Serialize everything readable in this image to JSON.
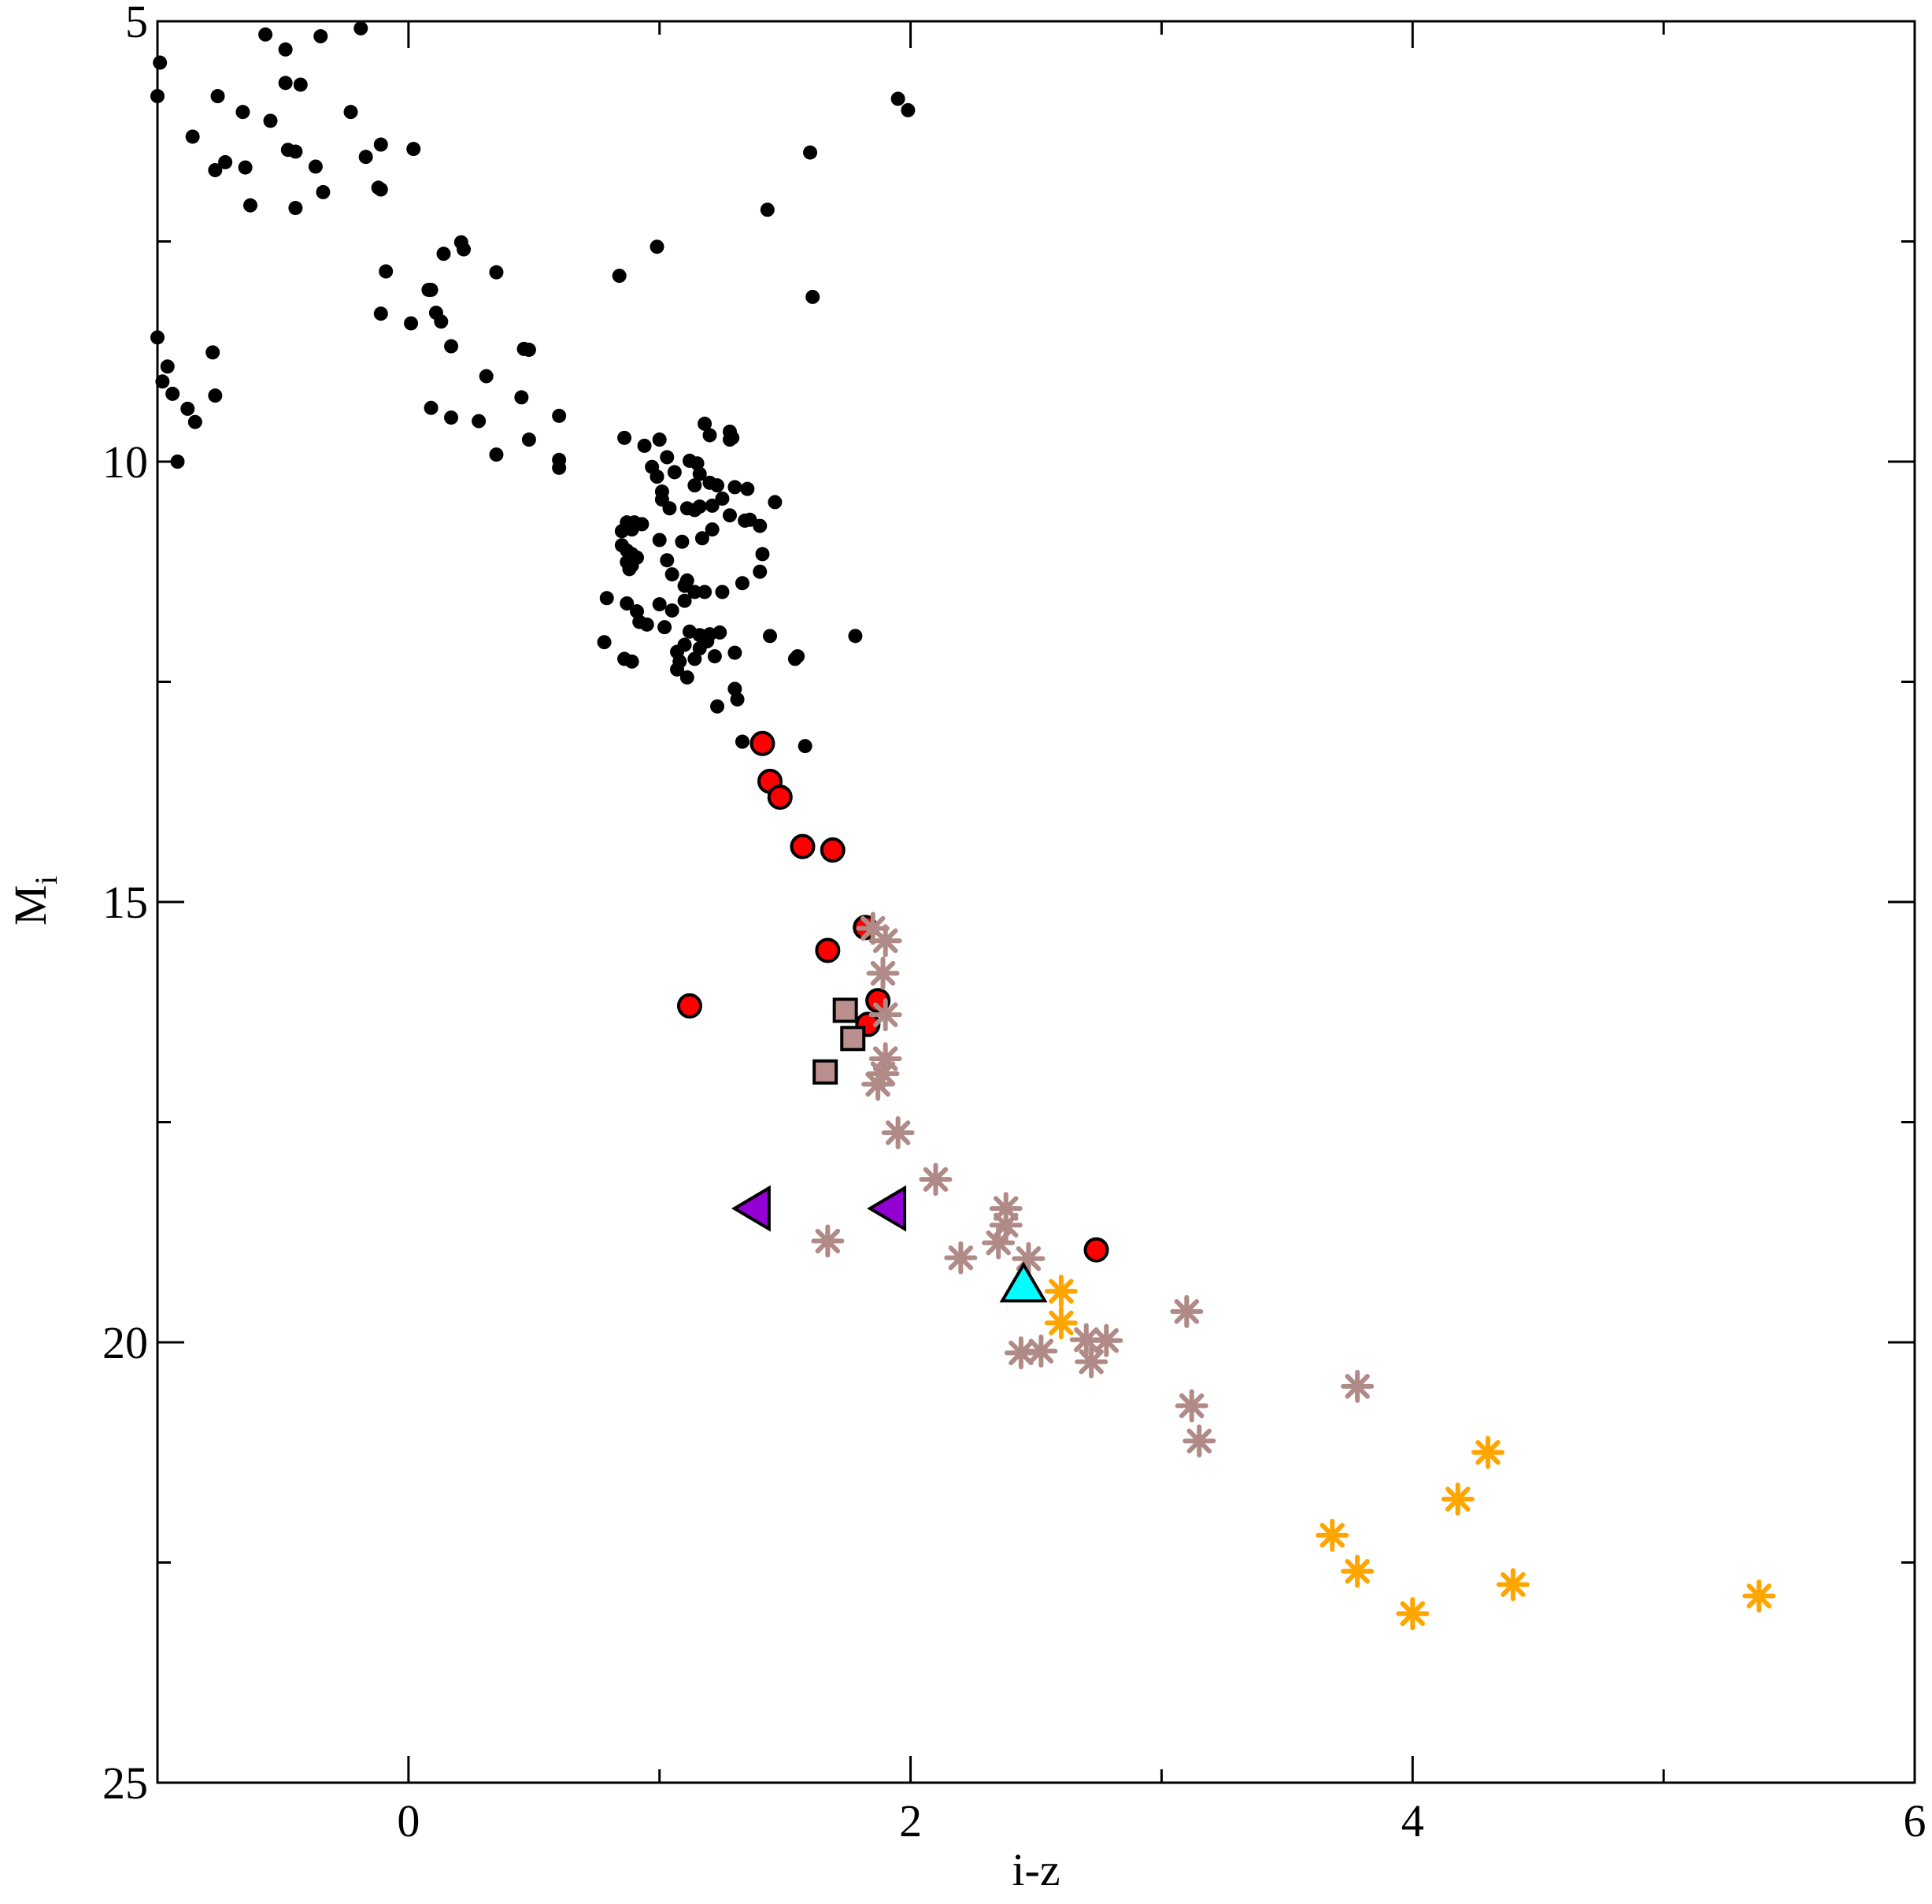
{
  "chart_data": {
    "type": "scatter",
    "xlabel": "i-z",
    "ylabel": "M",
    "ylabel_subscript": "i",
    "xlim": [
      -1.0,
      6.0
    ],
    "ylim": [
      5,
      25
    ],
    "y_inverted": true,
    "grid": false,
    "legend": "none",
    "x_major_ticks": [
      0,
      2,
      4,
      6
    ],
    "x_minor_ticks": [
      1,
      3,
      5
    ],
    "y_major_ticks": [
      5,
      10,
      15,
      20,
      25
    ],
    "y_minor_ticks": [
      7.5,
      12.5,
      17.5,
      22.5
    ],
    "x_tick_labels": [
      "0",
      "2",
      "4",
      "6"
    ],
    "y_tick_labels": [
      "5",
      "10",
      "15",
      "20",
      "25"
    ],
    "colors": {
      "black_dots": "#000000",
      "red_circles": "#ff0000",
      "rose_stars": "#b08a86",
      "orange_stars": "#ffa500",
      "rose_squares": "#bc8f8f",
      "purple_triangles": "#9400d3",
      "cyan_triangle": "#00ffff"
    },
    "series": [
      {
        "marker": "dot",
        "color": "#000000",
        "points": [
          [
            -0.57,
            5.15
          ],
          [
            -0.49,
            5.32
          ],
          [
            -0.35,
            5.17
          ],
          [
            -0.19,
            5.08
          ],
          [
            -0.99,
            5.47
          ],
          [
            -1.0,
            5.85
          ],
          [
            -0.76,
            5.85
          ],
          [
            -0.66,
            6.03
          ],
          [
            -0.55,
            6.13
          ],
          [
            -0.49,
            5.7
          ],
          [
            -0.43,
            5.72
          ],
          [
            -0.23,
            6.03
          ],
          [
            -0.86,
            6.31
          ],
          [
            -0.73,
            6.6
          ],
          [
            -0.77,
            6.69
          ],
          [
            -0.65,
            6.66
          ],
          [
            -0.48,
            6.46
          ],
          [
            -0.45,
            6.48
          ],
          [
            -0.37,
            6.65
          ],
          [
            -0.17,
            6.54
          ],
          [
            -0.11,
            6.4
          ],
          [
            0.02,
            6.45
          ],
          [
            -0.63,
            7.09
          ],
          [
            -0.45,
            7.12
          ],
          [
            -0.34,
            6.94
          ],
          [
            -0.12,
            6.89
          ],
          [
            -0.11,
            6.91
          ],
          [
            0.14,
            7.64
          ],
          [
            0.21,
            7.51
          ],
          [
            0.22,
            7.59
          ],
          [
            0.35,
            7.85
          ],
          [
            0.84,
            7.89
          ],
          [
            0.99,
            7.56
          ],
          [
            1.43,
            7.14
          ],
          [
            1.6,
            6.49
          ],
          [
            1.61,
            8.13
          ],
          [
            -0.09,
            7.84
          ],
          [
            0.08,
            8.05
          ],
          [
            0.09,
            8.05
          ],
          [
            0.11,
            8.31
          ],
          [
            0.13,
            8.41
          ],
          [
            -0.11,
            8.32
          ],
          [
            0.01,
            8.43
          ],
          [
            0.17,
            8.69
          ],
          [
            0.31,
            9.03
          ],
          [
            0.46,
            8.72
          ],
          [
            0.48,
            8.73
          ],
          [
            -0.78,
            8.76
          ],
          [
            -1.0,
            8.59
          ],
          [
            -0.96,
            8.92
          ],
          [
            -0.98,
            9.09
          ],
          [
            -0.94,
            9.23
          ],
          [
            -0.88,
            9.4
          ],
          [
            -0.85,
            9.55
          ],
          [
            -0.77,
            9.25
          ],
          [
            0.09,
            9.39
          ],
          [
            0.17,
            9.5
          ],
          [
            0.28,
            9.54
          ],
          [
            0.45,
            9.27
          ],
          [
            0.48,
            9.75
          ],
          [
            0.6,
            9.48
          ],
          [
            0.6,
            9.98
          ],
          [
            0.6,
            10.07
          ],
          [
            0.35,
            9.92
          ],
          [
            -0.92,
            10.0
          ],
          [
            0.86,
            9.73
          ],
          [
            1.95,
            5.88
          ],
          [
            1.99,
            6.01
          ]
        ]
      },
      {
        "marker": "dot",
        "color": "#000000",
        "points": [
          [
            1.18,
            9.57
          ],
          [
            1.2,
            9.7
          ],
          [
            1.28,
            9.66
          ],
          [
            1.29,
            9.73
          ],
          [
            1.28,
            9.75
          ],
          [
            1.0,
            9.75
          ],
          [
            0.94,
            9.82
          ],
          [
            1.03,
            9.95
          ],
          [
            1.12,
            9.99
          ],
          [
            1.15,
            10.02
          ],
          [
            1.16,
            10.14
          ],
          [
            1.06,
            10.12
          ],
          [
            0.97,
            10.06
          ],
          [
            0.99,
            10.17
          ],
          [
            1.14,
            10.27
          ],
          [
            1.2,
            10.24
          ],
          [
            1.23,
            10.27
          ],
          [
            1.3,
            10.29
          ],
          [
            1.35,
            10.31
          ],
          [
            1.46,
            10.46
          ],
          [
            1.25,
            10.42
          ],
          [
            1.28,
            10.61
          ],
          [
            1.16,
            10.51
          ],
          [
            1.14,
            10.55
          ],
          [
            1.04,
            10.53
          ],
          [
            1.01,
            10.43
          ],
          [
            1.01,
            10.34
          ],
          [
            0.99,
            10.17
          ],
          [
            1.11,
            10.53
          ],
          [
            1.21,
            10.5
          ],
          [
            1.36,
            10.66
          ],
          [
            1.34,
            10.67
          ],
          [
            1.4,
            10.73
          ],
          [
            1.21,
            10.77
          ],
          [
            1.17,
            10.87
          ],
          [
            1.09,
            10.91
          ],
          [
            1.0,
            10.89
          ],
          [
            0.93,
            10.71
          ],
          [
            0.9,
            10.69
          ],
          [
            0.89,
            10.77
          ],
          [
            0.87,
            10.69
          ],
          [
            0.85,
            10.79
          ],
          [
            0.85,
            10.95
          ],
          [
            0.87,
            11.01
          ],
          [
            0.89,
            11.05
          ],
          [
            0.91,
            11.09
          ],
          [
            0.87,
            11.14
          ],
          [
            0.89,
            11.18
          ],
          [
            0.88,
            11.22
          ],
          [
            1.03,
            11.12
          ],
          [
            1.05,
            11.28
          ],
          [
            1.11,
            11.35
          ],
          [
            1.1,
            11.41
          ],
          [
            1.14,
            11.48
          ],
          [
            1.18,
            11.48
          ],
          [
            1.25,
            11.48
          ],
          [
            1.4,
            11.25
          ],
          [
            1.41,
            11.05
          ],
          [
            1.33,
            11.38
          ],
          [
            0.79,
            11.55
          ],
          [
            0.87,
            11.61
          ],
          [
            0.91,
            11.7
          ],
          [
            1.0,
            11.62
          ],
          [
            1.1,
            11.58
          ],
          [
            1.05,
            11.69
          ],
          [
            0.92,
            11.82
          ],
          [
            0.95,
            11.85
          ],
          [
            1.02,
            11.88
          ],
          [
            1.12,
            11.93
          ],
          [
            1.16,
            11.97
          ],
          [
            1.2,
            11.96
          ],
          [
            1.24,
            11.94
          ],
          [
            1.19,
            12.04
          ],
          [
            1.16,
            12.12
          ],
          [
            1.1,
            12.08
          ],
          [
            1.07,
            12.16
          ],
          [
            1.08,
            12.27
          ],
          [
            1.14,
            12.24
          ],
          [
            1.22,
            12.21
          ],
          [
            1.3,
            12.17
          ],
          [
            1.44,
            11.98
          ],
          [
            1.55,
            12.21
          ],
          [
            1.54,
            12.24
          ],
          [
            1.78,
            11.98
          ],
          [
            0.86,
            12.24
          ],
          [
            0.89,
            12.27
          ],
          [
            0.78,
            12.05
          ],
          [
            1.07,
            12.36
          ],
          [
            1.11,
            12.45
          ],
          [
            1.3,
            12.58
          ],
          [
            1.31,
            12.7
          ],
          [
            1.23,
            12.78
          ],
          [
            1.33,
            13.18
          ],
          [
            1.58,
            13.23
          ],
          [
            1.56,
            14.37
          ]
        ]
      },
      {
        "marker": "circle",
        "color": "#ff0000",
        "points": [
          [
            1.41,
            13.2
          ],
          [
            1.44,
            13.63
          ],
          [
            1.48,
            13.81
          ],
          [
            1.57,
            14.37
          ],
          [
            1.69,
            14.41
          ],
          [
            1.82,
            15.29
          ],
          [
            1.67,
            15.55
          ],
          [
            1.87,
            16.12
          ],
          [
            1.12,
            16.18
          ],
          [
            1.83,
            16.39
          ],
          [
            2.74,
            18.95
          ]
        ]
      },
      {
        "marker": "asterisk",
        "color": "#b08a86",
        "points": [
          [
            1.85,
            15.3
          ],
          [
            1.9,
            15.44
          ],
          [
            1.89,
            15.81
          ],
          [
            1.9,
            16.28
          ],
          [
            1.9,
            16.78
          ],
          [
            1.89,
            16.95
          ],
          [
            1.87,
            17.07
          ],
          [
            1.95,
            17.62
          ],
          [
            2.1,
            18.15
          ],
          [
            2.38,
            18.48
          ],
          [
            2.38,
            18.67
          ],
          [
            2.35,
            18.87
          ],
          [
            2.2,
            19.04
          ],
          [
            1.67,
            18.85
          ],
          [
            2.47,
            19.05
          ],
          [
            2.7,
            19.97
          ],
          [
            2.78,
            19.98
          ],
          [
            2.52,
            20.1
          ],
          [
            2.44,
            20.12
          ],
          [
            2.72,
            20.22
          ],
          [
            3.1,
            19.65
          ],
          [
            3.12,
            20.72
          ],
          [
            3.15,
            21.12
          ],
          [
            3.78,
            20.5
          ]
        ]
      },
      {
        "marker": "asterisk",
        "color": "#ffa500",
        "points": [
          [
            2.6,
            19.42
          ],
          [
            2.6,
            19.78
          ],
          [
            4.3,
            21.25
          ],
          [
            4.18,
            21.78
          ],
          [
            3.68,
            22.19
          ],
          [
            3.78,
            22.6
          ],
          [
            4.0,
            23.08
          ],
          [
            4.4,
            22.75
          ],
          [
            5.38,
            22.88
          ]
        ]
      },
      {
        "marker": "square",
        "color": "#bc8f8f",
        "points": [
          [
            1.74,
            16.23
          ],
          [
            1.77,
            16.55
          ],
          [
            1.66,
            16.93
          ]
        ]
      },
      {
        "marker": "triangle-left",
        "color": "#9400d3",
        "points": [
          [
            1.38,
            18.48
          ],
          [
            1.92,
            18.48
          ]
        ]
      },
      {
        "marker": "triangle-up",
        "color": "#00ffff",
        "points": [
          [
            2.45,
            19.35
          ]
        ]
      }
    ]
  }
}
